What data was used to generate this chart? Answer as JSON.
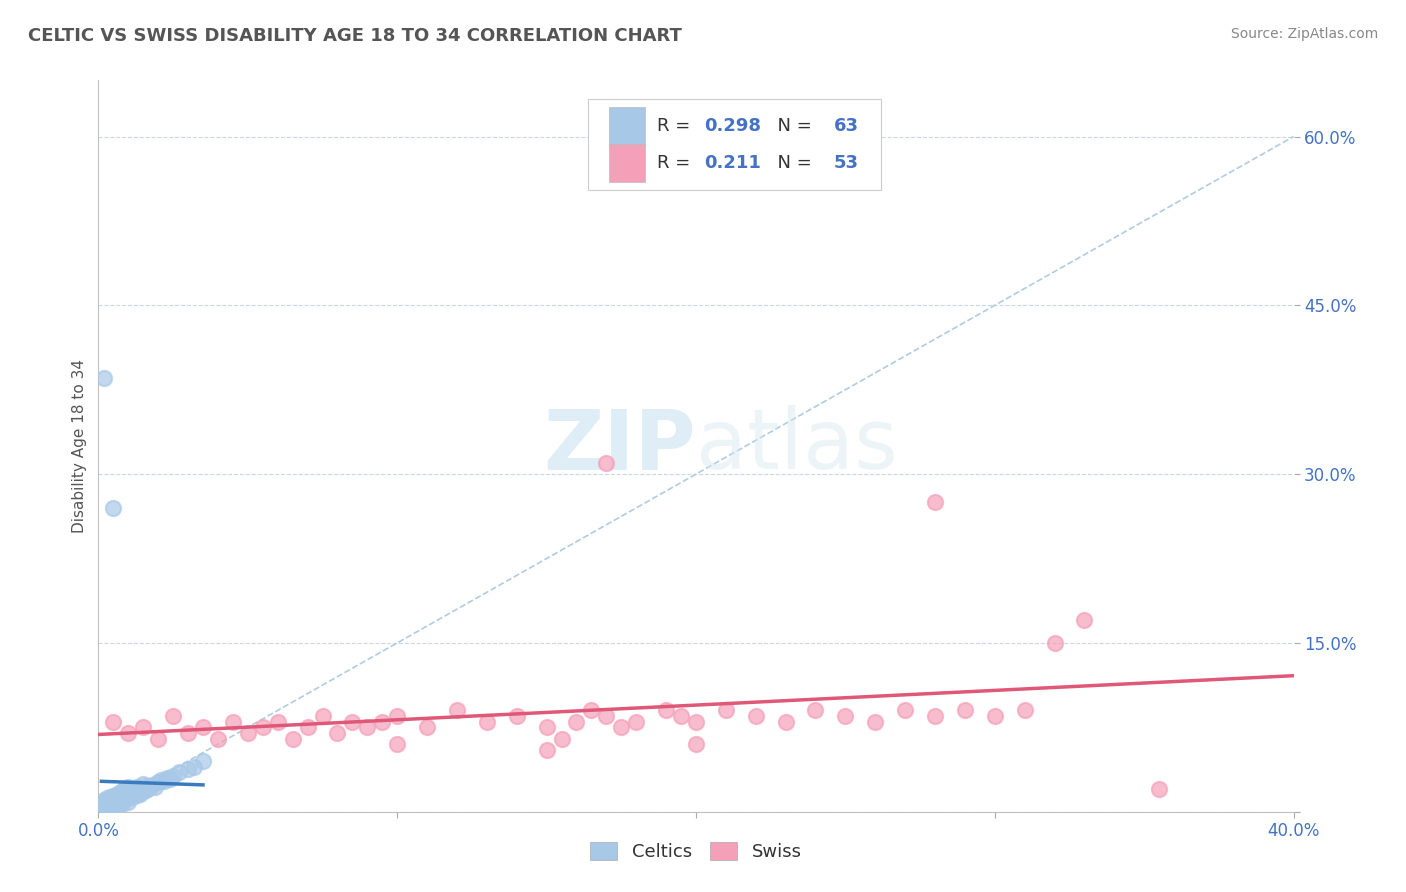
{
  "title": "CELTIC VS SWISS DISABILITY AGE 18 TO 34 CORRELATION CHART",
  "source": "Source: ZipAtlas.com",
  "ylabel": "Disability Age 18 to 34",
  "xlim": [
    0.0,
    0.4
  ],
  "ylim": [
    0.0,
    0.65
  ],
  "celtics_R": 0.298,
  "celtics_N": 63,
  "swiss_R": 0.211,
  "swiss_N": 53,
  "celtics_color": "#a8c8e8",
  "swiss_color": "#f4a0b8",
  "celtics_line_color": "#3a7abf",
  "swiss_line_color": "#e05878",
  "diagonal_color": "#b0cce0",
  "celtics_scatter": [
    [
      0.001,
      0.005
    ],
    [
      0.001,
      0.008
    ],
    [
      0.002,
      0.003
    ],
    [
      0.002,
      0.006
    ],
    [
      0.002,
      0.01
    ],
    [
      0.003,
      0.005
    ],
    [
      0.003,
      0.008
    ],
    [
      0.003,
      0.012
    ],
    [
      0.003,
      0.007
    ],
    [
      0.004,
      0.006
    ],
    [
      0.004,
      0.01
    ],
    [
      0.004,
      0.013
    ],
    [
      0.004,
      0.004
    ],
    [
      0.005,
      0.007
    ],
    [
      0.005,
      0.01
    ],
    [
      0.005,
      0.014
    ],
    [
      0.005,
      0.003
    ],
    [
      0.006,
      0.008
    ],
    [
      0.006,
      0.011
    ],
    [
      0.006,
      0.015
    ],
    [
      0.006,
      0.005
    ],
    [
      0.007,
      0.009
    ],
    [
      0.007,
      0.013
    ],
    [
      0.007,
      0.017
    ],
    [
      0.007,
      0.006
    ],
    [
      0.008,
      0.01
    ],
    [
      0.008,
      0.014
    ],
    [
      0.008,
      0.018
    ],
    [
      0.008,
      0.007
    ],
    [
      0.009,
      0.011
    ],
    [
      0.009,
      0.015
    ],
    [
      0.009,
      0.02
    ],
    [
      0.01,
      0.012
    ],
    [
      0.01,
      0.016
    ],
    [
      0.01,
      0.022
    ],
    [
      0.01,
      0.009
    ],
    [
      0.011,
      0.013
    ],
    [
      0.011,
      0.018
    ],
    [
      0.012,
      0.014
    ],
    [
      0.012,
      0.02
    ],
    [
      0.013,
      0.015
    ],
    [
      0.013,
      0.022
    ],
    [
      0.014,
      0.016
    ],
    [
      0.014,
      0.02
    ],
    [
      0.015,
      0.018
    ],
    [
      0.015,
      0.025
    ],
    [
      0.016,
      0.019
    ],
    [
      0.016,
      0.023
    ],
    [
      0.017,
      0.021
    ],
    [
      0.018,
      0.024
    ],
    [
      0.019,
      0.022
    ],
    [
      0.02,
      0.026
    ],
    [
      0.021,
      0.028
    ],
    [
      0.022,
      0.027
    ],
    [
      0.023,
      0.03
    ],
    [
      0.024,
      0.029
    ],
    [
      0.025,
      0.032
    ],
    [
      0.027,
      0.035
    ],
    [
      0.03,
      0.038
    ],
    [
      0.032,
      0.04
    ],
    [
      0.035,
      0.045
    ],
    [
      0.002,
      0.385
    ],
    [
      0.005,
      0.27
    ]
  ],
  "swiss_scatter": [
    [
      0.005,
      0.08
    ],
    [
      0.01,
      0.07
    ],
    [
      0.015,
      0.075
    ],
    [
      0.02,
      0.065
    ],
    [
      0.025,
      0.085
    ],
    [
      0.03,
      0.07
    ],
    [
      0.035,
      0.075
    ],
    [
      0.04,
      0.065
    ],
    [
      0.045,
      0.08
    ],
    [
      0.05,
      0.07
    ],
    [
      0.055,
      0.075
    ],
    [
      0.06,
      0.08
    ],
    [
      0.065,
      0.065
    ],
    [
      0.07,
      0.075
    ],
    [
      0.075,
      0.085
    ],
    [
      0.08,
      0.07
    ],
    [
      0.085,
      0.08
    ],
    [
      0.09,
      0.075
    ],
    [
      0.095,
      0.08
    ],
    [
      0.1,
      0.085
    ],
    [
      0.11,
      0.075
    ],
    [
      0.12,
      0.09
    ],
    [
      0.13,
      0.08
    ],
    [
      0.14,
      0.085
    ],
    [
      0.15,
      0.075
    ],
    [
      0.155,
      0.065
    ],
    [
      0.16,
      0.08
    ],
    [
      0.165,
      0.09
    ],
    [
      0.17,
      0.085
    ],
    [
      0.175,
      0.075
    ],
    [
      0.18,
      0.08
    ],
    [
      0.19,
      0.09
    ],
    [
      0.195,
      0.085
    ],
    [
      0.2,
      0.08
    ],
    [
      0.21,
      0.09
    ],
    [
      0.22,
      0.085
    ],
    [
      0.23,
      0.08
    ],
    [
      0.24,
      0.09
    ],
    [
      0.25,
      0.085
    ],
    [
      0.26,
      0.08
    ],
    [
      0.27,
      0.09
    ],
    [
      0.28,
      0.085
    ],
    [
      0.29,
      0.09
    ],
    [
      0.3,
      0.085
    ],
    [
      0.31,
      0.09
    ],
    [
      0.32,
      0.15
    ],
    [
      0.33,
      0.17
    ],
    [
      0.17,
      0.31
    ],
    [
      0.28,
      0.275
    ],
    [
      0.355,
      0.02
    ],
    [
      0.2,
      0.06
    ],
    [
      0.15,
      0.055
    ],
    [
      0.1,
      0.06
    ]
  ]
}
